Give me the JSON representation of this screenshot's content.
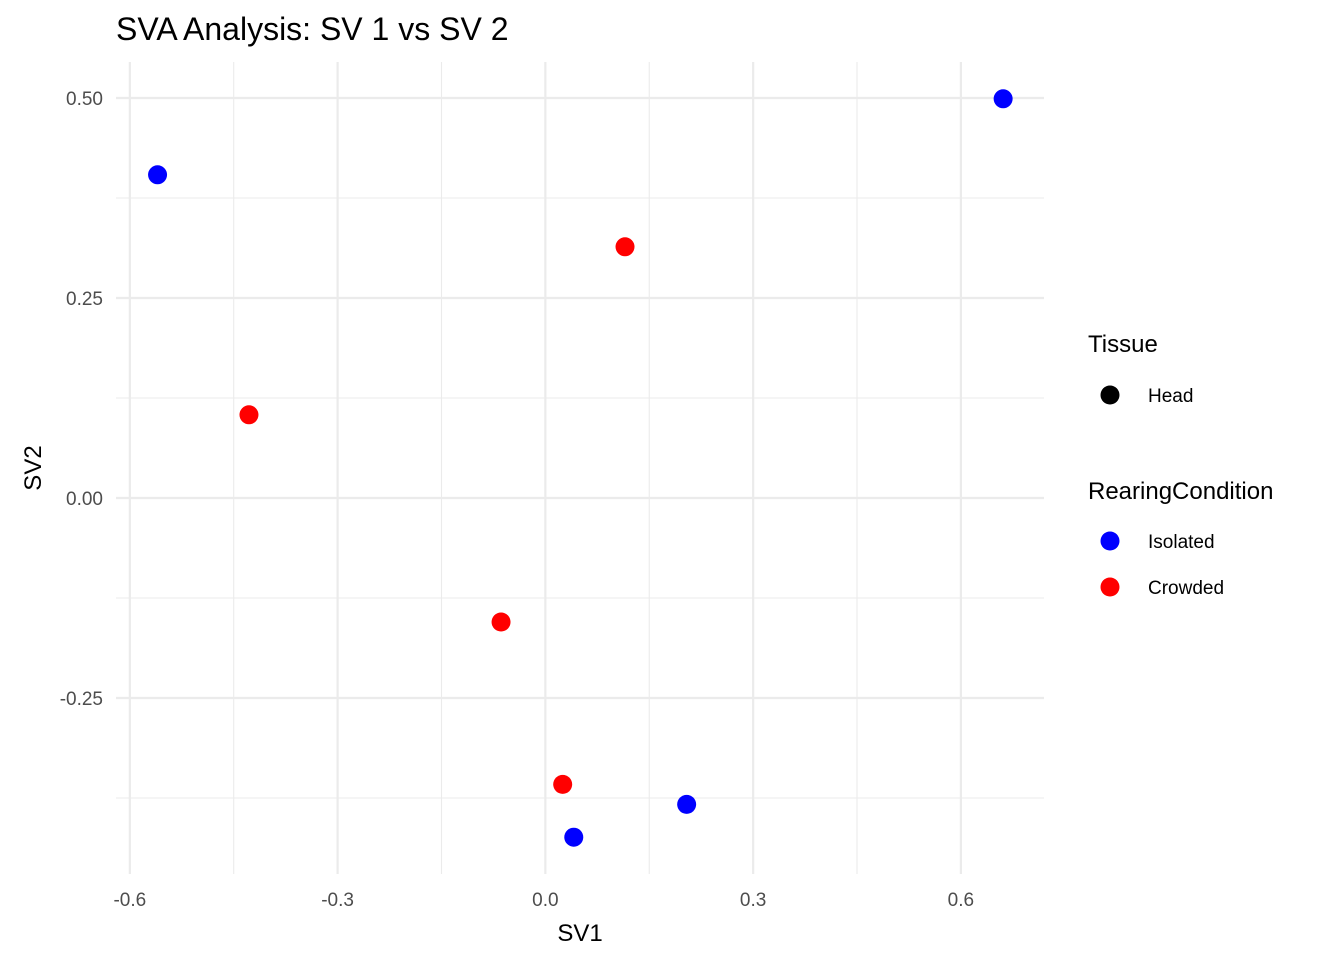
{
  "chart_data": {
    "type": "scatter",
    "title": "SVA Analysis: SV 1  vs SV 2",
    "xlabel": "SV1",
    "ylabel": "SV2",
    "xlim": [
      -0.62,
      0.72
    ],
    "ylim": [
      -0.47,
      0.545
    ],
    "x_ticks": [
      -0.6,
      -0.3,
      0.0,
      0.3,
      0.6
    ],
    "x_tick_labels": [
      "-0.6",
      "-0.3",
      "0.0",
      "0.3",
      "0.6"
    ],
    "y_ticks": [
      0.5,
      0.25,
      0.0,
      -0.25
    ],
    "y_tick_labels": [
      "0.50",
      "0.25",
      "0.00",
      "-0.25"
    ],
    "grid": true,
    "legend_position": "right",
    "legends": [
      {
        "title": "Tissue",
        "entries": [
          {
            "label": "Head",
            "color": "#000000"
          }
        ]
      },
      {
        "title": "RearingCondition",
        "entries": [
          {
            "label": "Isolated",
            "color": "#0000ff"
          },
          {
            "label": "Crowded",
            "color": "#ff0000"
          }
        ]
      }
    ],
    "series": [
      {
        "name": "Isolated",
        "color": "#0000ff",
        "points": [
          {
            "x": -0.56,
            "y": 0.404
          },
          {
            "x": 0.661,
            "y": 0.499
          },
          {
            "x": 0.204,
            "y": -0.383
          },
          {
            "x": 0.041,
            "y": -0.424
          }
        ]
      },
      {
        "name": "Crowded",
        "color": "#ff0000",
        "points": [
          {
            "x": -0.428,
            "y": 0.104
          },
          {
            "x": 0.115,
            "y": 0.314
          },
          {
            "x": -0.064,
            "y": -0.155
          },
          {
            "x": 0.025,
            "y": -0.358
          }
        ]
      }
    ]
  }
}
